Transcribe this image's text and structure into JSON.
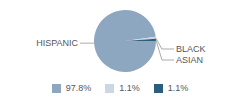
{
  "chart_data": {
    "type": "pie",
    "categories": [
      "HISPANIC",
      "BLACK",
      "ASIAN"
    ],
    "values": [
      97.8,
      1.1,
      1.1
    ],
    "value_labels": [
      "97.8%",
      "1.1%",
      "1.1%"
    ],
    "colors": [
      "#8ea7c0",
      "#cbd8e4",
      "#2e5e7e"
    ],
    "legend": "bottom"
  }
}
